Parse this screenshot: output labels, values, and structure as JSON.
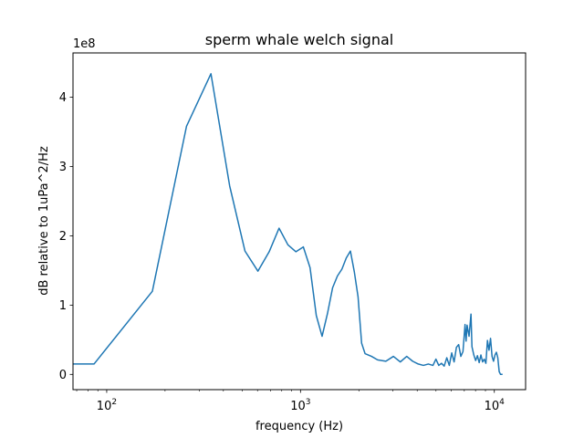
{
  "chart_data": {
    "type": "line",
    "title": "sperm whale welch signal",
    "xlabel": "frequency (Hz)",
    "ylabel": "dB relative to 1uPa^2/Hz",
    "xscale": "log",
    "xlim": [
      67,
      14500
    ],
    "ylim": [
      -0.22,
      4.64
    ],
    "y_multiplier_label": "1e8",
    "x_ticks": [
      {
        "base": "10",
        "exp": "2",
        "value": 100
      },
      {
        "base": "10",
        "exp": "3",
        "value": 1000
      },
      {
        "base": "10",
        "exp": "4",
        "value": 10000
      }
    ],
    "y_ticks": [
      {
        "label": "0",
        "value": 0
      },
      {
        "label": "1",
        "value": 1
      },
      {
        "label": "2",
        "value": 2
      },
      {
        "label": "3",
        "value": 3
      },
      {
        "label": "4",
        "value": 4
      }
    ],
    "grid": false,
    "series": [
      {
        "color": "#1f77b4",
        "points": [
          [
            67,
            0.15
          ],
          [
            86,
            0.15
          ],
          [
            172,
            1.2
          ],
          [
            258,
            3.58
          ],
          [
            345,
            4.34
          ],
          [
            431,
            2.72
          ],
          [
            517,
            1.78
          ],
          [
            603,
            1.49
          ],
          [
            689,
            1.77
          ],
          [
            775,
            2.11
          ],
          [
            861,
            1.87
          ],
          [
            947,
            1.77
          ],
          [
            1034,
            1.84
          ],
          [
            1120,
            1.54
          ],
          [
            1206,
            0.85
          ],
          [
            1292,
            0.55
          ],
          [
            1378,
            0.88
          ],
          [
            1464,
            1.25
          ],
          [
            1550,
            1.42
          ],
          [
            1636,
            1.52
          ],
          [
            1722,
            1.68
          ],
          [
            1809,
            1.78
          ],
          [
            1895,
            1.48
          ],
          [
            1981,
            1.12
          ],
          [
            2067,
            0.45
          ],
          [
            2153,
            0.3
          ],
          [
            2326,
            0.26
          ],
          [
            2498,
            0.21
          ],
          [
            2756,
            0.19
          ],
          [
            3015,
            0.26
          ],
          [
            3273,
            0.18
          ],
          [
            3532,
            0.26
          ],
          [
            3790,
            0.19
          ],
          [
            4048,
            0.15
          ],
          [
            4306,
            0.13
          ],
          [
            4565,
            0.15
          ],
          [
            4823,
            0.13
          ],
          [
            4996,
            0.22
          ],
          [
            5168,
            0.13
          ],
          [
            5340,
            0.16
          ],
          [
            5512,
            0.12
          ],
          [
            5685,
            0.24
          ],
          [
            5857,
            0.13
          ],
          [
            6029,
            0.31
          ],
          [
            6201,
            0.18
          ],
          [
            6373,
            0.39
          ],
          [
            6546,
            0.43
          ],
          [
            6718,
            0.26
          ],
          [
            6890,
            0.33
          ],
          [
            7062,
            0.72
          ],
          [
            7149,
            0.48
          ],
          [
            7235,
            0.71
          ],
          [
            7407,
            0.55
          ],
          [
            7579,
            0.87
          ],
          [
            7666,
            0.4
          ],
          [
            7838,
            0.28
          ],
          [
            8010,
            0.2
          ],
          [
            8182,
            0.27
          ],
          [
            8355,
            0.17
          ],
          [
            8527,
            0.28
          ],
          [
            8699,
            0.18
          ],
          [
            8871,
            0.22
          ],
          [
            9044,
            0.16
          ],
          [
            9216,
            0.49
          ],
          [
            9388,
            0.35
          ],
          [
            9560,
            0.52
          ],
          [
            9733,
            0.26
          ],
          [
            9905,
            0.19
          ],
          [
            10077,
            0.28
          ],
          [
            10249,
            0.32
          ],
          [
            10422,
            0.24
          ],
          [
            10594,
            0.04
          ],
          [
            10766,
            0.0
          ],
          [
            11025,
            0.0
          ]
        ]
      }
    ]
  }
}
